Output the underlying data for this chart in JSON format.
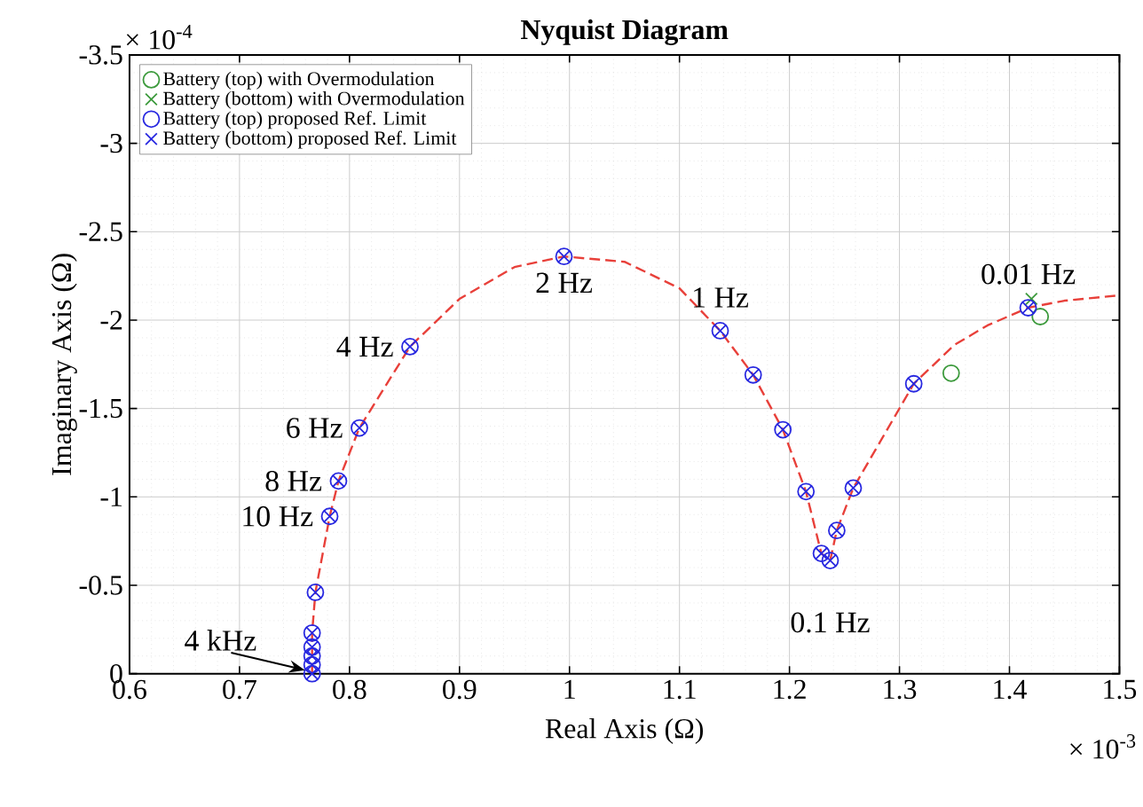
{
  "chart_data": {
    "type": "scatter",
    "title": "Nyquist Diagram",
    "xlabel": "Real Axis (Ω)",
    "ylabel": "Imaginary Axis (Ω)",
    "xlim": [
      0.6,
      1.5
    ],
    "xticks": [
      0.6,
      0.7,
      0.8,
      0.9,
      1,
      1.1,
      1.2,
      1.3,
      1.4,
      1.5
    ],
    "ylim": [
      0,
      -3.5
    ],
    "yticks": [
      -3.5,
      -3,
      -2.5,
      -2,
      -1.5,
      -1,
      -0.5,
      0
    ],
    "grid": true,
    "legend": "top left",
    "series": [
      {
        "type": "line",
        "color": "#e8403a",
        "line_style": "dashed",
        "marker": "none",
        "x": [
          0.766,
          0.766,
          0.769,
          0.782,
          0.79,
          0.809,
          0.855,
          0.9,
          0.95,
          0.995,
          1.05,
          1.1,
          1.137,
          1.167,
          1.194,
          1.215,
          1.229,
          1.237,
          1.243,
          1.258,
          1.313,
          1.35,
          1.38,
          1.417,
          1.45,
          1.5
        ],
        "values": [
          0,
          -0.23,
          -0.46,
          -0.89,
          -1.09,
          -1.39,
          -1.85,
          -2.12,
          -2.3,
          -2.36,
          -2.33,
          -2.18,
          -1.94,
          -1.69,
          -1.38,
          -1.03,
          -0.68,
          -0.64,
          -0.81,
          -1.05,
          -1.64,
          -1.86,
          -1.97,
          -2.07,
          -2.11,
          -2.14
        ]
      },
      {
        "name": "Battery (top) with Overmodulation",
        "color": "#3c9a3c",
        "marker": "circle",
        "x": [
          1.347,
          1.428
        ],
        "values": [
          -1.7,
          -2.02
        ]
      },
      {
        "name": "Battery (bottom) with Overmodulation",
        "color": "#3c9a3c",
        "marker": "cross",
        "x": [
          1.42
        ],
        "values": [
          -2.12
        ]
      },
      {
        "name": "Battery (top) proposed Ref. Limit",
        "color": "#2828e0",
        "marker": "circle",
        "x": [
          0.766,
          0.766,
          0.766,
          0.766,
          0.766,
          0.769,
          0.782,
          0.79,
          0.809,
          0.855,
          0.995,
          1.137,
          1.167,
          1.194,
          1.215,
          1.229,
          1.237,
          1.243,
          1.258,
          1.313,
          1.417
        ],
        "values": [
          0,
          -0.05,
          -0.1,
          -0.15,
          -0.23,
          -0.46,
          -0.89,
          -1.09,
          -1.39,
          -1.85,
          -2.36,
          -1.94,
          -1.69,
          -1.38,
          -1.03,
          -0.68,
          -0.64,
          -0.81,
          -1.05,
          -1.64,
          -2.07
        ]
      },
      {
        "name": "Battery (bottom) proposed Ref. Limit",
        "color": "#2828e0",
        "marker": "cross",
        "x": [
          0.766,
          0.766,
          0.766,
          0.766,
          0.766,
          0.769,
          0.782,
          0.79,
          0.809,
          0.855,
          0.995,
          1.137,
          1.167,
          1.194,
          1.215,
          1.229,
          1.237,
          1.243,
          1.258,
          1.313,
          1.417
        ],
        "values": [
          0,
          -0.05,
          -0.1,
          -0.15,
          -0.23,
          -0.46,
          -0.89,
          -1.09,
          -1.39,
          -1.85,
          -2.36,
          -1.94,
          -1.69,
          -1.38,
          -1.03,
          -0.68,
          -0.64,
          -0.81,
          -1.05,
          -1.64,
          -2.07
        ]
      }
    ],
    "annotations": [
      "× 10$^{-4}$",
      "× 10$^{-3}$",
      {
        "text": "4 kHz",
        "x": 0.766,
        "y": 0
      },
      {
        "text": "10 Hz",
        "x": 0.782,
        "y": -0.89
      },
      {
        "text": "8 Hz",
        "x": 0.79,
        "y": -1.09
      },
      {
        "text": "6 Hz",
        "x": 0.809,
        "y": -1.39
      },
      {
        "text": "4 Hz",
        "x": 0.855,
        "y": -1.85
      },
      {
        "text": "2 Hz",
        "x": 0.995,
        "y": -2.36
      },
      {
        "text": "1 Hz",
        "x": 1.137,
        "y": -1.94
      },
      {
        "text": "0.1 Hz",
        "x": 1.237,
        "y": -0.64
      },
      {
        "text": "0.01 Hz",
        "x": 1.417,
        "y": -2.07
      }
    ]
  }
}
